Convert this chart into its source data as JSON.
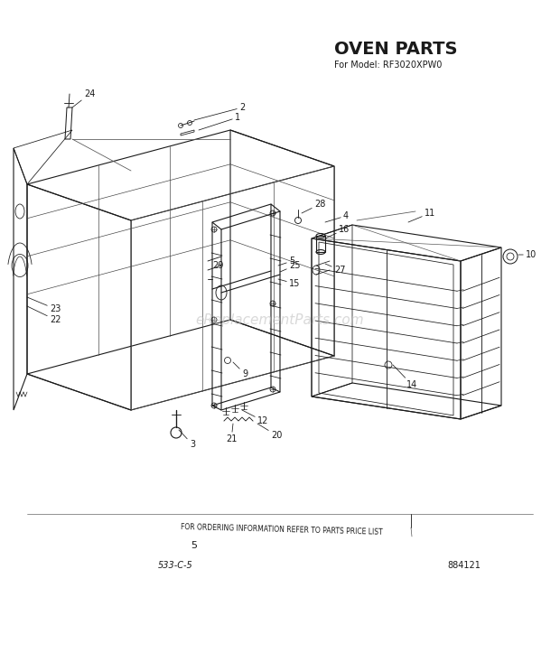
{
  "title": "OVEN PARTS",
  "subtitle": "For Model: RF3020XPW0",
  "bg_color": "#ffffff",
  "footer_text": "FOR ORDERING INFORMATION REFER TO PARTS PRICE LIST",
  "footer_page": "5",
  "footer_code": "533-C-5",
  "footer_id": "884121",
  "watermark": "eReplacementParts.com",
  "lc": "#1a1a1a",
  "lw": 0.8
}
